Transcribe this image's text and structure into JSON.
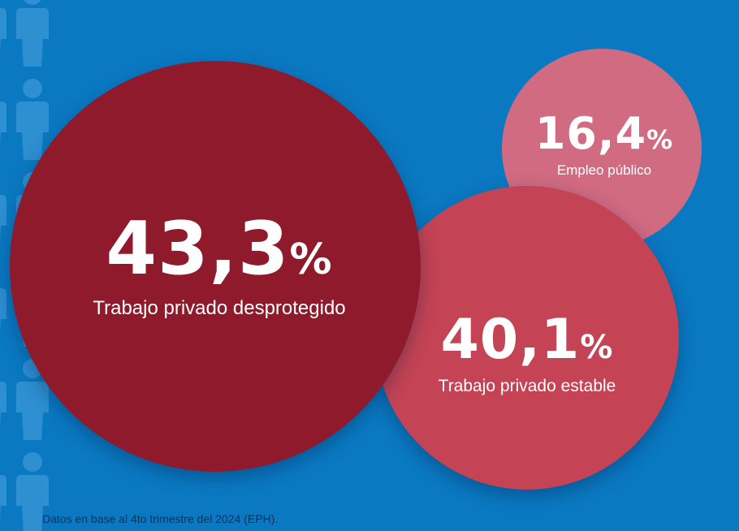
{
  "chart_data": {
    "type": "bubble",
    "title": "",
    "unit": "%",
    "series": [
      {
        "value": 43.3,
        "label": "43,3",
        "name": "Trabajo privado desprotegido",
        "color": "#8e1a2b"
      },
      {
        "value": 40.1,
        "label": "40,1",
        "name": "Trabajo privado estable",
        "color": "#c44354"
      },
      {
        "value": 16.4,
        "label": "16,4",
        "name": "Empleo público",
        "color": "#d06b82"
      }
    ]
  },
  "footnote": "Datos en base al 4to trimestre del 2024 (EPH).",
  "colors": {
    "background": "#0a79c2",
    "people_icons": "#2e8fd1",
    "text": "#ffffff"
  },
  "icons": {
    "background_pattern": "person-silhouette-icon"
  }
}
